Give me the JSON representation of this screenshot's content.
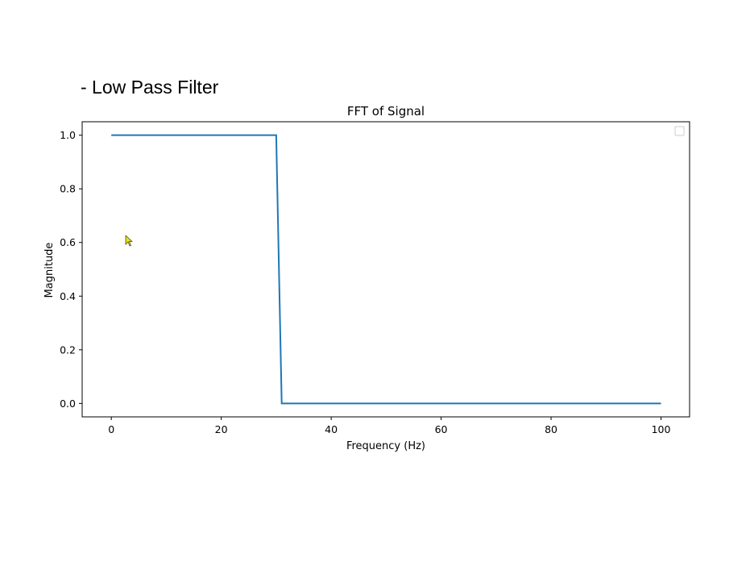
{
  "slide": {
    "heading": "- Low Pass Filter"
  },
  "chart_data": {
    "type": "line",
    "title": "FFT of Signal",
    "xlabel": "Frequency (Hz)",
    "ylabel": "Magnitude",
    "xlim": [
      -5.3,
      105.2
    ],
    "ylim": [
      -0.05,
      1.05
    ],
    "xticks": [
      0,
      20,
      40,
      60,
      80,
      100
    ],
    "xtick_labels": [
      "0",
      "20",
      "40",
      "60",
      "80",
      "100"
    ],
    "yticks": [
      0.0,
      0.2,
      0.4,
      0.6,
      0.8,
      1.0
    ],
    "ytick_labels": [
      "0.0",
      "0.2",
      "0.4",
      "0.6",
      "0.8",
      "1.0"
    ],
    "grid": false,
    "legend": "upper right (empty)",
    "series": [
      {
        "color": "#1f77b4",
        "x": [
          0,
          30,
          31,
          100
        ],
        "y": [
          1.0,
          1.0,
          0.0,
          0.0
        ]
      }
    ]
  }
}
